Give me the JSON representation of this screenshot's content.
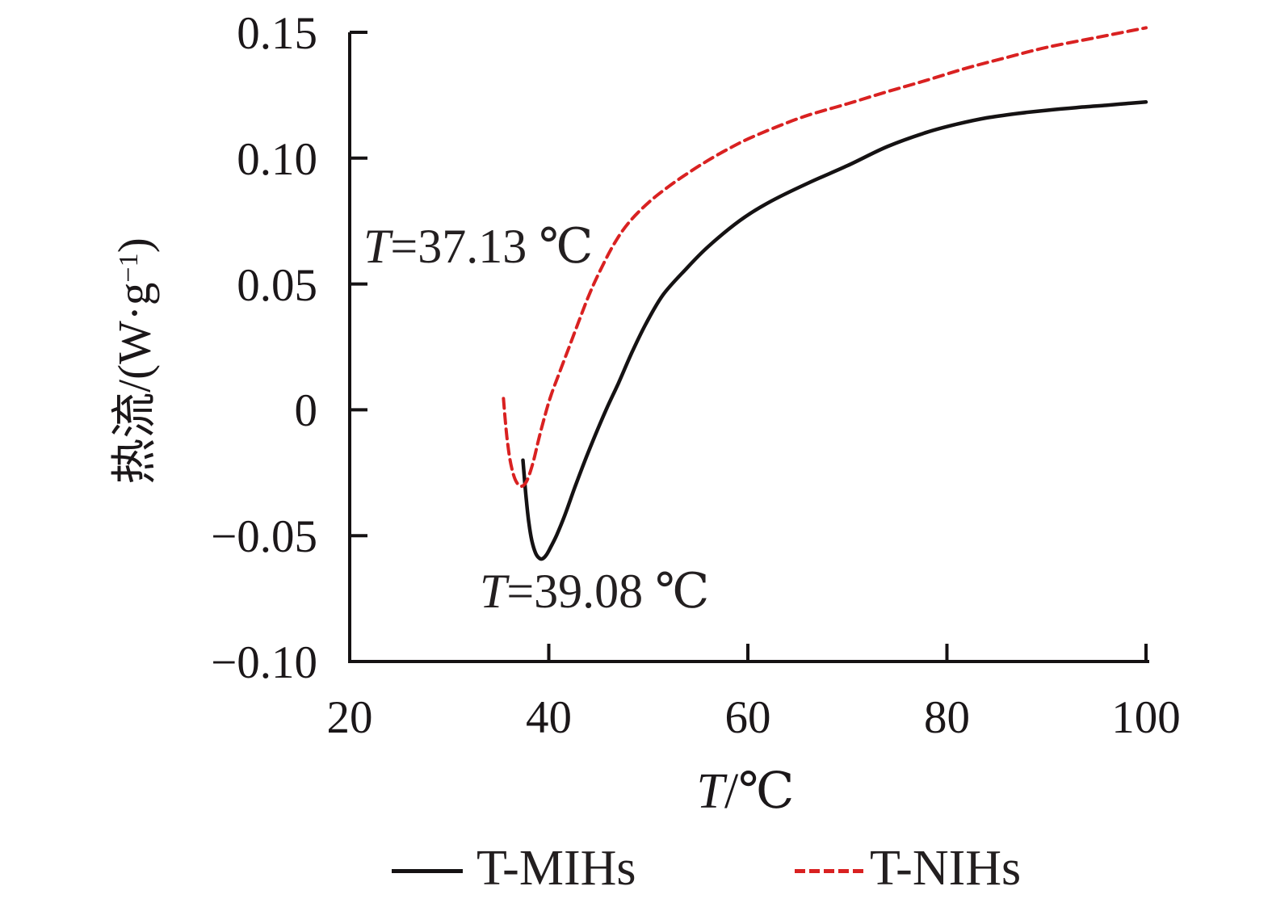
{
  "figure": {
    "ylabel": {
      "prefix": "热流/(W·g",
      "sup": "−1",
      "suffix": ")"
    },
    "xlabel": {
      "symbol": "T",
      "rest": "/℃"
    }
  },
  "legend": {
    "items": [
      {
        "label": "T-MIHs",
        "color": "#151213",
        "style": "solid"
      },
      {
        "label": "T-NIHs",
        "color": "#d92121",
        "style": "dashed"
      }
    ]
  },
  "chart_data": {
    "type": "line",
    "title": "",
    "xlabel": "T/℃",
    "ylabel": "热流/(W·g⁻¹)",
    "xlim": [
      20,
      100
    ],
    "ylim": [
      -0.1,
      0.15
    ],
    "grid": false,
    "legend_position": "bottom",
    "axis_color": "#151213",
    "xticks": {
      "values": [
        20,
        40,
        60,
        80,
        100
      ],
      "labels": [
        "20",
        "40",
        "60",
        "80",
        "100"
      ]
    },
    "yticks": {
      "values": [
        0.15,
        0.1,
        0.05,
        0,
        -0.05,
        -0.1
      ],
      "labels": [
        "0.15",
        "0.10",
        "0.05",
        "0",
        "−0.05",
        "−0.10"
      ]
    },
    "annotations": [
      {
        "symbol": "T",
        "rest": "=37.13 ℃",
        "x": 21.38,
        "y": 0.0656,
        "align": "left"
      },
      {
        "symbol": "T",
        "rest": "=39.08 ℃",
        "x": 33.06,
        "y": -0.0715,
        "align": "left"
      }
    ],
    "series": [
      {
        "name": "T-MIHs",
        "color": "#151213",
        "style": "solid",
        "stroke_width": 4.5,
        "points": [
          [
            37.4,
            -0.02
          ],
          [
            37.55,
            -0.027
          ],
          [
            37.75,
            -0.036
          ],
          [
            38.0,
            -0.045
          ],
          [
            38.3,
            -0.052
          ],
          [
            38.65,
            -0.0567
          ],
          [
            39.0,
            -0.0588
          ],
          [
            39.35,
            -0.0592
          ],
          [
            39.75,
            -0.0577
          ],
          [
            40.2,
            -0.0545
          ],
          [
            40.8,
            -0.0497
          ],
          [
            41.6,
            -0.042
          ],
          [
            42.6,
            -0.031
          ],
          [
            43.6,
            -0.0205
          ],
          [
            44.7,
            -0.0098
          ],
          [
            45.8,
            0.0004
          ],
          [
            47.0,
            0.0106
          ],
          [
            48.4,
            0.0232
          ],
          [
            49.8,
            0.0345
          ],
          [
            51.5,
            0.0458
          ],
          [
            53.8,
            0.056
          ],
          [
            56.0,
            0.0648
          ],
          [
            59.2,
            0.0752
          ],
          [
            62.0,
            0.0822
          ],
          [
            66.0,
            0.09
          ],
          [
            70.0,
            0.097
          ],
          [
            74.0,
            0.1046
          ],
          [
            78.0,
            0.1103
          ],
          [
            81.0,
            0.1135
          ],
          [
            84.0,
            0.116
          ],
          [
            87.0,
            0.1177
          ],
          [
            90.0,
            0.119
          ],
          [
            93.0,
            0.1201
          ],
          [
            96.0,
            0.121
          ],
          [
            98.0,
            0.1217
          ],
          [
            100.0,
            0.1223
          ]
        ]
      },
      {
        "name": "T-NIHs",
        "color": "#d92121",
        "style": "dashed",
        "stroke_width": 4,
        "points": [
          [
            35.45,
            0.0045
          ],
          [
            35.6,
            -0.003
          ],
          [
            35.8,
            -0.011
          ],
          [
            36.05,
            -0.0185
          ],
          [
            36.35,
            -0.0243
          ],
          [
            36.7,
            -0.0283
          ],
          [
            37.13,
            -0.0303
          ],
          [
            37.55,
            -0.0297
          ],
          [
            37.95,
            -0.0268
          ],
          [
            38.45,
            -0.0205
          ],
          [
            39.0,
            -0.0115
          ],
          [
            39.6,
            -0.0025
          ],
          [
            40.2,
            0.0055
          ],
          [
            41.0,
            0.014
          ],
          [
            42.0,
            0.0245
          ],
          [
            43.0,
            0.035
          ],
          [
            44.0,
            0.0452
          ],
          [
            45.0,
            0.054
          ],
          [
            46.5,
            0.0655
          ],
          [
            48.0,
            0.0742
          ],
          [
            50.0,
            0.0823
          ],
          [
            52.0,
            0.0886
          ],
          [
            54.0,
            0.0941
          ],
          [
            56.0,
            0.0991
          ],
          [
            58.0,
            0.1036
          ],
          [
            60.0,
            0.1076
          ],
          [
            63.0,
            0.1126
          ],
          [
            66.0,
            0.117
          ],
          [
            70.0,
            0.1216
          ],
          [
            74.0,
            0.1264
          ],
          [
            78.0,
            0.131
          ],
          [
            82.0,
            0.1358
          ],
          [
            86.0,
            0.14
          ],
          [
            90.0,
            0.144
          ],
          [
            95.0,
            0.1479
          ],
          [
            100.0,
            0.1518
          ]
        ]
      }
    ]
  }
}
